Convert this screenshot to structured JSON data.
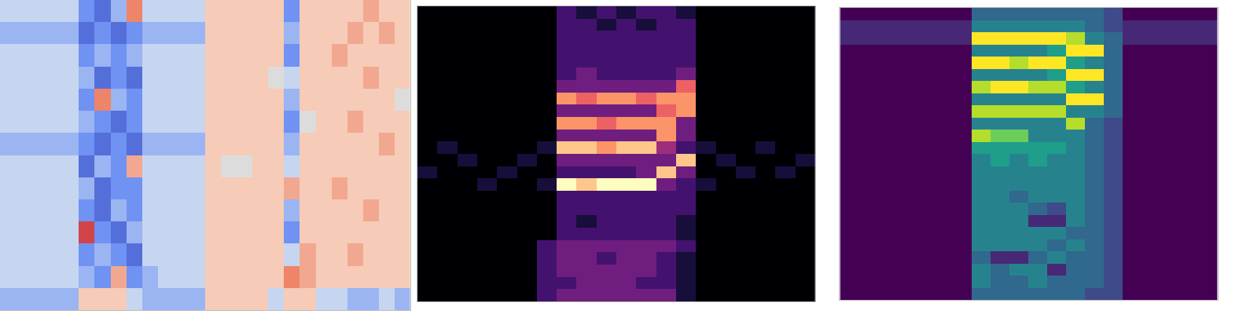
{
  "chart_data": [
    {
      "type": "heatmap",
      "color": "coolwarm",
      "tick_labels": false,
      "zlim": [
        -5,
        5
      ],
      "xlim": [
        -0.5,
        25.5
      ],
      "ylim": [
        13.5,
        -0.5
      ],
      "values": [
        [
          -1,
          -1,
          -1,
          -1,
          -1,
          -3,
          -4,
          -2,
          3,
          -1,
          -1,
          -1,
          -1,
          1,
          1,
          1,
          1,
          1,
          -3,
          1,
          1,
          1,
          1,
          2,
          1,
          1
        ],
        [
          -2,
          -2,
          -2,
          -2,
          -2,
          -4,
          -3,
          -4,
          -3,
          -2,
          -2,
          -2,
          -2,
          1,
          1,
          1,
          1,
          1,
          -2,
          1,
          1,
          1,
          2,
          1,
          2,
          1
        ],
        [
          -1,
          -1,
          -1,
          -1,
          -1,
          -3,
          -2,
          -3,
          -2,
          -1,
          -1,
          -1,
          -1,
          1,
          1,
          1,
          1,
          1,
          -3,
          1,
          1,
          2,
          1,
          1,
          1,
          1
        ],
        [
          -1,
          -1,
          -1,
          -1,
          -1,
          -2,
          -4,
          -3,
          -4,
          -1,
          -1,
          -1,
          -1,
          1,
          1,
          1,
          1,
          0,
          -1,
          1,
          1,
          1,
          1,
          2,
          1,
          1
        ],
        [
          -1,
          -1,
          -1,
          -1,
          -1,
          -3,
          3,
          -2,
          -3,
          -1,
          -1,
          -1,
          -1,
          1,
          1,
          1,
          1,
          1,
          -2,
          1,
          1,
          1,
          1,
          1,
          1,
          0
        ],
        [
          -1,
          -1,
          -1,
          -1,
          -1,
          -2,
          -3,
          -4,
          -3,
          -1,
          -1,
          -1,
          -1,
          1,
          1,
          1,
          1,
          1,
          -3,
          0,
          1,
          1,
          2,
          1,
          1,
          1
        ],
        [
          -2,
          -2,
          -2,
          -2,
          -2,
          -3,
          -4,
          -3,
          -4,
          -2,
          -2,
          -2,
          -2,
          1,
          1,
          1,
          1,
          1,
          -2,
          1,
          1,
          1,
          1,
          1,
          2,
          1
        ],
        [
          -1,
          -1,
          -1,
          -1,
          -1,
          -4,
          -2,
          -3,
          2,
          -1,
          -1,
          -1,
          -1,
          1,
          0,
          0,
          1,
          1,
          -1,
          1,
          1,
          1,
          1,
          1,
          1,
          1
        ],
        [
          -1,
          -1,
          -1,
          -1,
          -1,
          -2,
          -4,
          -3,
          -3,
          -1,
          -1,
          -1,
          -1,
          1,
          1,
          1,
          1,
          1,
          2,
          1,
          1,
          2,
          1,
          1,
          1,
          1
        ],
        [
          -1,
          -1,
          -1,
          -1,
          -1,
          -3,
          -4,
          -2,
          -3,
          -1,
          -1,
          -1,
          -1,
          1,
          1,
          1,
          1,
          1,
          -2,
          1,
          1,
          1,
          1,
          2,
          1,
          1
        ],
        [
          -1,
          -1,
          -1,
          -1,
          -1,
          4,
          -3,
          -4,
          -2,
          -1,
          -1,
          -1,
          -1,
          1,
          1,
          1,
          1,
          1,
          -3,
          1,
          1,
          1,
          1,
          1,
          1,
          1
        ],
        [
          -1,
          -1,
          -1,
          -1,
          -1,
          -3,
          -2,
          -3,
          -4,
          -1,
          -1,
          -1,
          -1,
          1,
          1,
          1,
          1,
          1,
          -1,
          2,
          1,
          1,
          2,
          1,
          1,
          1
        ],
        [
          -1,
          -1,
          -1,
          -1,
          -1,
          -2,
          -3,
          2,
          -3,
          -2,
          -1,
          -1,
          -1,
          1,
          1,
          1,
          1,
          1,
          3,
          2,
          1,
          1,
          1,
          1,
          1,
          1
        ],
        [
          -2,
          -2,
          -2,
          -2,
          -2,
          1,
          1,
          1,
          -1,
          -2,
          -2,
          -2,
          -2,
          1,
          1,
          1,
          1,
          -1,
          1,
          1,
          -1,
          -1,
          -2,
          -2,
          -1,
          -2
        ]
      ]
    },
    {
      "type": "heatmap",
      "color": "magma",
      "tick_labels": false,
      "zlim": [
        0,
        9
      ],
      "xlim": [
        -0.5,
        19.5
      ],
      "ylim": [
        23.5,
        -0.5
      ],
      "values": [
        [
          0,
          0,
          0,
          0,
          0,
          0,
          0,
          2,
          1,
          2,
          1,
          2,
          2,
          1,
          0,
          0,
          0,
          0,
          0,
          0
        ],
        [
          0,
          0,
          0,
          0,
          0,
          0,
          0,
          2,
          2,
          1,
          2,
          1,
          2,
          2,
          0,
          0,
          0,
          0,
          0,
          0
        ],
        [
          0,
          0,
          0,
          0,
          0,
          0,
          0,
          2,
          2,
          2,
          2,
          2,
          2,
          2,
          0,
          0,
          0,
          0,
          0,
          0
        ],
        [
          0,
          0,
          0,
          0,
          0,
          0,
          0,
          2,
          2,
          2,
          2,
          2,
          2,
          2,
          0,
          0,
          0,
          0,
          0,
          0
        ],
        [
          0,
          0,
          0,
          0,
          0,
          0,
          0,
          2,
          2,
          2,
          2,
          2,
          2,
          2,
          0,
          0,
          0,
          0,
          0,
          0
        ],
        [
          0,
          0,
          0,
          0,
          0,
          0,
          0,
          2,
          3,
          2,
          2,
          2,
          2,
          3,
          0,
          0,
          0,
          0,
          0,
          0
        ],
        [
          0,
          0,
          0,
          0,
          0,
          0,
          0,
          3,
          3,
          3,
          3,
          3,
          3,
          6,
          0,
          0,
          0,
          0,
          0,
          0
        ],
        [
          0,
          0,
          0,
          0,
          0,
          0,
          0,
          7,
          6,
          7,
          7,
          6,
          7,
          7,
          0,
          0,
          0,
          0,
          0,
          0
        ],
        [
          0,
          0,
          0,
          0,
          0,
          0,
          0,
          3,
          3,
          3,
          3,
          3,
          6,
          7,
          0,
          0,
          0,
          0,
          0,
          0
        ],
        [
          0,
          0,
          0,
          0,
          0,
          0,
          0,
          7,
          7,
          6,
          7,
          7,
          7,
          3,
          0,
          0,
          0,
          0,
          0,
          0
        ],
        [
          0,
          0,
          0,
          0,
          0,
          0,
          0,
          3,
          3,
          3,
          3,
          3,
          7,
          3,
          0,
          0,
          0,
          0,
          0,
          0
        ],
        [
          0,
          1,
          0,
          0,
          0,
          0,
          1,
          8,
          8,
          7,
          8,
          8,
          4,
          2,
          1,
          0,
          0,
          1,
          0,
          0
        ],
        [
          0,
          0,
          1,
          0,
          0,
          1,
          0,
          3,
          3,
          3,
          3,
          3,
          3,
          8,
          0,
          1,
          0,
          0,
          0,
          1
        ],
        [
          1,
          0,
          0,
          0,
          1,
          0,
          0,
          2,
          2,
          2,
          2,
          3,
          8,
          3,
          0,
          0,
          1,
          0,
          1,
          0
        ],
        [
          0,
          0,
          0,
          1,
          0,
          0,
          1,
          9,
          8,
          9,
          9,
          9,
          3,
          2,
          1,
          0,
          0,
          0,
          0,
          0
        ],
        [
          0,
          0,
          0,
          0,
          0,
          0,
          0,
          2,
          2,
          2,
          2,
          2,
          2,
          2,
          0,
          0,
          0,
          0,
          0,
          0
        ],
        [
          0,
          0,
          0,
          0,
          0,
          0,
          0,
          2,
          2,
          2,
          2,
          2,
          2,
          2,
          0,
          0,
          0,
          0,
          0,
          0
        ],
        [
          0,
          0,
          0,
          0,
          0,
          0,
          0,
          2,
          1,
          2,
          2,
          2,
          2,
          1,
          0,
          0,
          0,
          0,
          0,
          0
        ],
        [
          0,
          0,
          0,
          0,
          0,
          0,
          0,
          2,
          2,
          2,
          2,
          2,
          2,
          1,
          0,
          0,
          0,
          0,
          0,
          0
        ],
        [
          0,
          0,
          0,
          0,
          0,
          0,
          2,
          3,
          3,
          3,
          3,
          3,
          3,
          2,
          0,
          0,
          0,
          0,
          0,
          0
        ],
        [
          0,
          0,
          0,
          0,
          0,
          0,
          2,
          3,
          3,
          2,
          3,
          3,
          2,
          1,
          0,
          0,
          0,
          0,
          0,
          0
        ],
        [
          0,
          0,
          0,
          0,
          0,
          0,
          2,
          3,
          3,
          3,
          3,
          3,
          2,
          1,
          0,
          0,
          0,
          0,
          0,
          0
        ],
        [
          0,
          0,
          0,
          0,
          0,
          0,
          2,
          2,
          3,
          3,
          3,
          2,
          2,
          1,
          0,
          0,
          0,
          0,
          0,
          0
        ],
        [
          0,
          0,
          0,
          0,
          0,
          0,
          2,
          3,
          3,
          3,
          3,
          3,
          3,
          1,
          0,
          0,
          0,
          0,
          0,
          0
        ]
      ]
    },
    {
      "type": "heatmap",
      "color": "viridis",
      "tick_labels": false,
      "zlim": [
        0,
        9
      ],
      "xlim": [
        -0.5,
        19.5
      ],
      "ylim": [
        23.5,
        -0.5
      ],
      "values": [
        [
          0,
          0,
          0,
          0,
          0,
          0,
          0,
          3,
          3,
          3,
          3,
          3,
          3,
          3,
          2,
          0,
          0,
          0,
          0,
          0
        ],
        [
          1,
          1,
          1,
          1,
          1,
          1,
          1,
          4,
          4,
          4,
          4,
          4,
          4,
          3,
          2,
          1,
          1,
          1,
          1,
          1
        ],
        [
          1,
          1,
          1,
          1,
          1,
          1,
          1,
          9,
          9,
          9,
          9,
          9,
          8,
          4,
          3,
          1,
          1,
          1,
          1,
          1
        ],
        [
          0,
          0,
          0,
          0,
          0,
          0,
          0,
          4,
          4,
          4,
          4,
          5,
          9,
          9,
          3,
          0,
          0,
          0,
          0,
          0
        ],
        [
          0,
          0,
          0,
          0,
          0,
          0,
          0,
          9,
          9,
          8,
          9,
          9,
          5,
          4,
          3,
          0,
          0,
          0,
          0,
          0
        ],
        [
          0,
          0,
          0,
          0,
          0,
          0,
          0,
          4,
          4,
          4,
          4,
          5,
          9,
          9,
          3,
          0,
          0,
          0,
          0,
          0
        ],
        [
          0,
          0,
          0,
          0,
          0,
          0,
          0,
          8,
          9,
          9,
          8,
          8,
          5,
          4,
          3,
          0,
          0,
          0,
          0,
          0
        ],
        [
          0,
          0,
          0,
          0,
          0,
          0,
          0,
          4,
          4,
          4,
          4,
          4,
          9,
          9,
          3,
          0,
          0,
          0,
          0,
          0
        ],
        [
          0,
          0,
          0,
          0,
          0,
          0,
          0,
          8,
          8,
          8,
          8,
          8,
          4,
          4,
          3,
          0,
          0,
          0,
          0,
          0
        ],
        [
          0,
          0,
          0,
          0,
          0,
          0,
          0,
          4,
          4,
          4,
          4,
          4,
          8,
          3,
          2,
          0,
          0,
          0,
          0,
          0
        ],
        [
          0,
          0,
          0,
          0,
          0,
          0,
          0,
          8,
          7,
          7,
          4,
          4,
          4,
          3,
          2,
          0,
          0,
          0,
          0,
          0
        ],
        [
          0,
          0,
          0,
          0,
          0,
          0,
          0,
          5,
          5,
          5,
          5,
          5,
          4,
          3,
          2,
          0,
          0,
          0,
          0,
          0
        ],
        [
          0,
          0,
          0,
          0,
          0,
          0,
          0,
          4,
          5,
          4,
          5,
          4,
          4,
          3,
          2,
          0,
          0,
          0,
          0,
          0
        ],
        [
          0,
          0,
          0,
          0,
          0,
          0,
          0,
          4,
          4,
          4,
          4,
          4,
          4,
          3,
          2,
          0,
          0,
          0,
          0,
          0
        ],
        [
          0,
          0,
          0,
          0,
          0,
          0,
          0,
          4,
          4,
          4,
          4,
          4,
          4,
          3,
          2,
          0,
          0,
          0,
          0,
          0
        ],
        [
          0,
          0,
          0,
          0,
          0,
          0,
          0,
          4,
          4,
          3,
          4,
          4,
          4,
          3,
          2,
          0,
          0,
          0,
          0,
          0
        ],
        [
          0,
          0,
          0,
          0,
          0,
          0,
          0,
          4,
          4,
          4,
          3,
          2,
          4,
          3,
          2,
          0,
          0,
          0,
          0,
          0
        ],
        [
          0,
          0,
          0,
          0,
          0,
          0,
          0,
          4,
          4,
          4,
          1,
          1,
          4,
          3,
          2,
          0,
          0,
          0,
          0,
          0
        ],
        [
          0,
          0,
          0,
          0,
          0,
          0,
          0,
          4,
          4,
          4,
          4,
          4,
          3,
          3,
          2,
          0,
          0,
          0,
          0,
          0
        ],
        [
          0,
          0,
          0,
          0,
          0,
          0,
          0,
          4,
          4,
          4,
          4,
          3,
          4,
          3,
          2,
          0,
          0,
          0,
          0,
          0
        ],
        [
          0,
          0,
          0,
          0,
          0,
          0,
          0,
          3,
          1,
          1,
          3,
          4,
          3,
          3,
          2,
          0,
          0,
          0,
          0,
          0
        ],
        [
          0,
          0,
          0,
          0,
          0,
          0,
          0,
          4,
          3,
          4,
          4,
          1,
          3,
          3,
          2,
          0,
          0,
          0,
          0,
          0
        ],
        [
          0,
          0,
          0,
          0,
          0,
          0,
          0,
          4,
          3,
          3,
          4,
          3,
          3,
          3,
          2,
          0,
          0,
          0,
          0,
          0
        ],
        [
          0,
          0,
          0,
          0,
          0,
          0,
          0,
          3,
          3,
          3,
          3,
          3,
          3,
          2,
          2,
          0,
          0,
          0,
          0,
          0
        ]
      ]
    }
  ]
}
